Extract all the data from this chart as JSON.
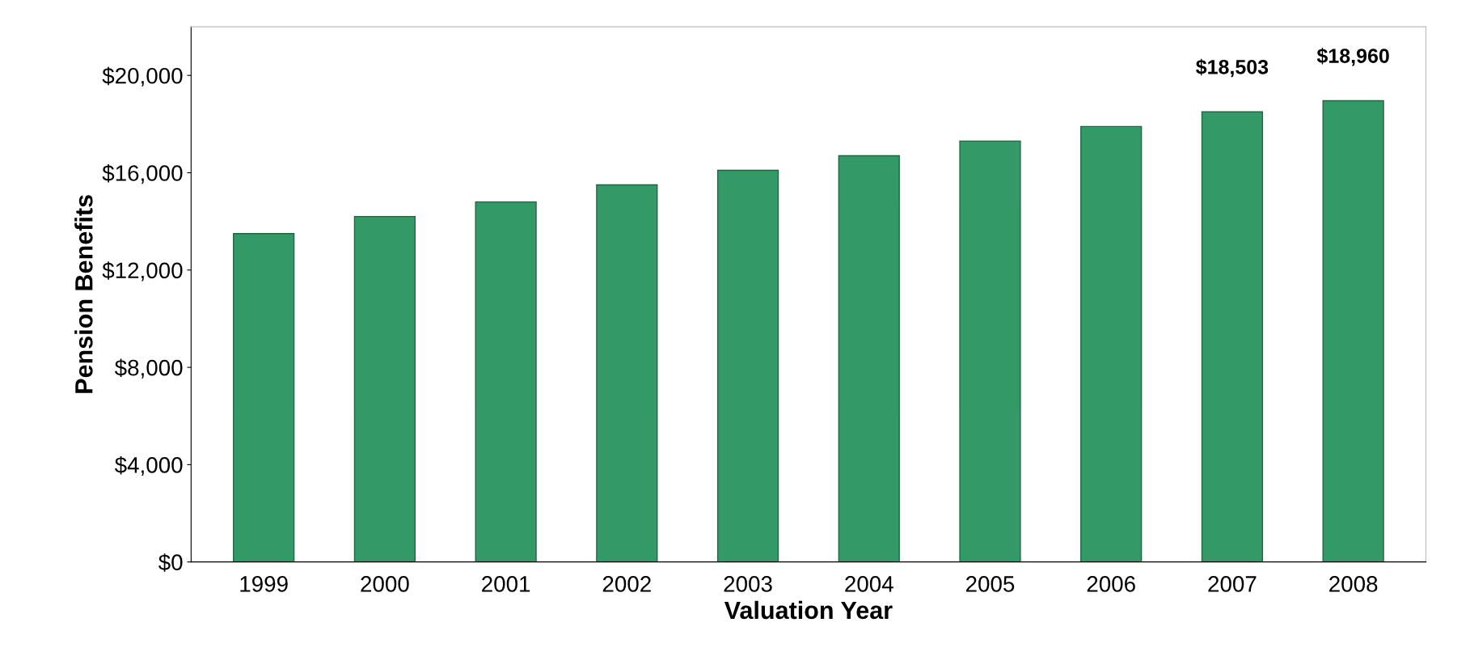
{
  "chart_data": {
    "type": "bar",
    "xlabel": "Valuation Year",
    "ylabel": "Pension Benefits",
    "categories": [
      "1999",
      "2000",
      "2001",
      "2002",
      "2003",
      "2004",
      "2005",
      "2006",
      "2007",
      "2008"
    ],
    "values": [
      13500,
      14200,
      14800,
      15500,
      16100,
      16700,
      17300,
      17900,
      18503,
      18960
    ],
    "value_labels": [
      null,
      null,
      null,
      null,
      null,
      null,
      null,
      null,
      "$18,503",
      "$18,960"
    ],
    "color": "#339966",
    "ylim": [
      0,
      22000
    ],
    "yticks": [
      {
        "value": 0,
        "label": "$0"
      },
      {
        "value": 4000,
        "label": "$4,000"
      },
      {
        "value": 8000,
        "label": "$8,000"
      },
      {
        "value": 12000,
        "label": "$12,000"
      },
      {
        "value": 16000,
        "label": "$16,000"
      },
      {
        "value": 20000,
        "label": "$20,000"
      }
    ],
    "grid": false,
    "legend": false
  }
}
